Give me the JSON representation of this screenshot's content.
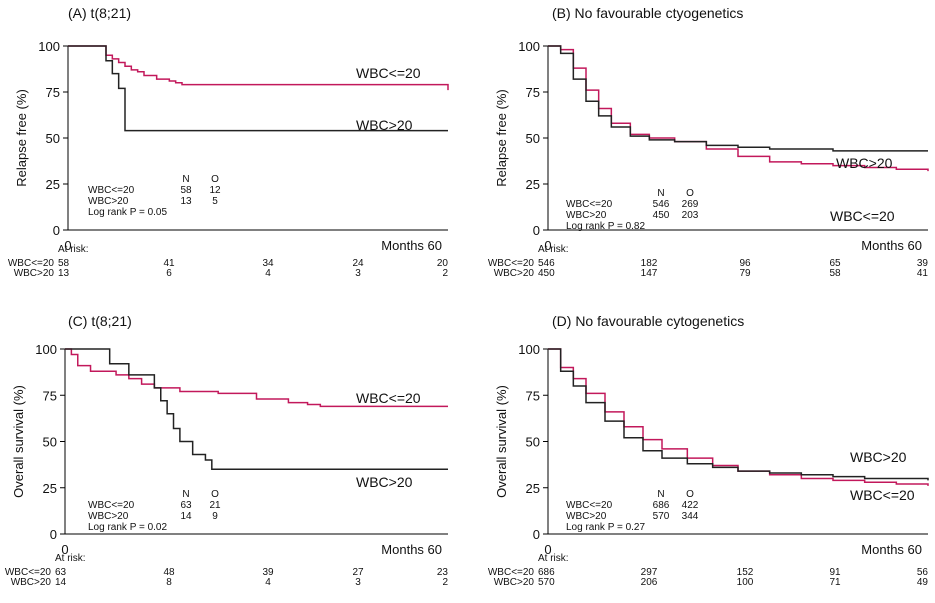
{
  "colors": {
    "wbc_le20": "#c2185b",
    "wbc_gt20": "#222222"
  },
  "chart_data": [
    {
      "id": "A",
      "type": "line",
      "title": "(A) t(8;21)",
      "ylabel": "Relapse free (%)",
      "xlabel": "Months",
      "x_end_label": "60",
      "xlim": [
        0,
        60
      ],
      "ylim": [
        0,
        100
      ],
      "y_ticks": [
        0,
        25,
        50,
        75,
        100
      ],
      "x_ticks": [
        0
      ],
      "series": [
        {
          "name": "WBC<=20",
          "color_key": "wbc_le20",
          "x": [
            0,
            5,
            6,
            7,
            8,
            9,
            10,
            11,
            12,
            14,
            16,
            17,
            18,
            60,
            60
          ],
          "y": [
            100,
            100,
            95,
            93,
            91,
            89,
            87,
            86,
            84,
            82,
            81,
            80,
            79,
            79,
            76
          ]
        },
        {
          "name": "WBC>20",
          "color_key": "wbc_gt20",
          "x": [
            0,
            5,
            6,
            7,
            8,
            9,
            60
          ],
          "y": [
            100,
            100,
            92,
            85,
            77,
            54,
            54
          ]
        }
      ],
      "stats_header": [
        "",
        "N",
        "O"
      ],
      "stats": [
        {
          "group": "WBC<=20",
          "N": "58",
          "O": "12"
        },
        {
          "group": "WBC>20",
          "N": "13",
          "O": "5"
        }
      ],
      "logrank": "Log rank P = 0.05",
      "at_risk_label": "At risk:",
      "at_risk": [
        {
          "group": "WBC<=20",
          "values": [
            "58",
            "41",
            "34",
            "24",
            "20"
          ]
        },
        {
          "group": "WBC>20",
          "values": [
            "13",
            "6",
            "4",
            "3",
            "2"
          ]
        }
      ]
    },
    {
      "id": "B",
      "type": "line",
      "title": "(B) No favourable ctyogenetics",
      "ylabel": "Relapse free (%)",
      "xlabel": "Months",
      "x_end_label": "60",
      "xlim": [
        0,
        60
      ],
      "ylim": [
        0,
        100
      ],
      "y_ticks": [
        0,
        25,
        50,
        75,
        100
      ],
      "x_ticks": [
        0
      ],
      "series": [
        {
          "name": "WBC<=20",
          "color_key": "wbc_le20",
          "x": [
            0,
            2,
            4,
            6,
            8,
            10,
            13,
            16,
            20,
            25,
            30,
            35,
            40,
            45,
            50,
            55,
            60
          ],
          "y": [
            100,
            98,
            88,
            76,
            66,
            58,
            52,
            50,
            48,
            44,
            40,
            37,
            36,
            35,
            34,
            33,
            32
          ]
        },
        {
          "name": "WBC>20",
          "color_key": "wbc_gt20",
          "x": [
            0,
            2,
            4,
            6,
            8,
            10,
            13,
            16,
            20,
            25,
            30,
            35,
            40,
            45,
            50,
            55,
            60
          ],
          "y": [
            100,
            96,
            82,
            70,
            62,
            56,
            51,
            49,
            48,
            46,
            45,
            44,
            44,
            43,
            43,
            43,
            43
          ]
        }
      ],
      "stats_header": [
        "",
        "N",
        "O"
      ],
      "stats": [
        {
          "group": "WBC<=20",
          "N": "546",
          "O": "269"
        },
        {
          "group": "WBC>20",
          "N": "450",
          "O": "203"
        }
      ],
      "logrank": "Log rank P = 0.82",
      "at_risk_label": "At risk:",
      "at_risk": [
        {
          "group": "WBC<=20",
          "values": [
            "546",
            "182",
            "96",
            "65",
            "39"
          ]
        },
        {
          "group": "WBC>20",
          "values": [
            "450",
            "147",
            "79",
            "58",
            "41"
          ]
        }
      ]
    },
    {
      "id": "C",
      "type": "line",
      "title": "(C) t(8;21)",
      "ylabel": "Overall survival (%)",
      "xlabel": "Months",
      "x_end_label": "60",
      "xlim": [
        0,
        60
      ],
      "ylim": [
        0,
        100
      ],
      "y_ticks": [
        0,
        25,
        50,
        75,
        100
      ],
      "x_ticks": [
        0
      ],
      "series": [
        {
          "name": "WBC<=20",
          "color_key": "wbc_le20",
          "x": [
            0,
            1,
            2,
            4,
            8,
            10,
            12,
            14,
            18,
            24,
            30,
            35,
            38,
            40,
            60
          ],
          "y": [
            100,
            97,
            91,
            88,
            86,
            84,
            81,
            79,
            77,
            76,
            73,
            71,
            70,
            69,
            69
          ]
        },
        {
          "name": "WBC>20",
          "color_key": "wbc_gt20",
          "x": [
            0,
            7,
            7,
            10,
            14,
            15,
            16,
            17,
            18,
            20,
            22,
            23,
            60
          ],
          "y": [
            100,
            100,
            92,
            86,
            79,
            72,
            65,
            57,
            50,
            43,
            40,
            35,
            35
          ]
        }
      ],
      "stats_header": [
        "",
        "N",
        "O"
      ],
      "stats": [
        {
          "group": "WBC<=20",
          "N": "63",
          "O": "21"
        },
        {
          "group": "WBC>20",
          "N": "14",
          "O": "9"
        }
      ],
      "logrank": "Log rank P = 0.02",
      "at_risk_label": "At risk:",
      "at_risk": [
        {
          "group": "WBC<=20",
          "values": [
            "63",
            "48",
            "39",
            "27",
            "23"
          ]
        },
        {
          "group": "WBC>20",
          "values": [
            "14",
            "8",
            "4",
            "3",
            "2"
          ]
        }
      ]
    },
    {
      "id": "D",
      "type": "line",
      "title": "(D) No favourable cytogenetics",
      "ylabel": "Overall survival (%)",
      "xlabel": "Months",
      "x_end_label": "60",
      "xlim": [
        0,
        60
      ],
      "ylim": [
        0,
        100
      ],
      "y_ticks": [
        0,
        25,
        50,
        75,
        100
      ],
      "x_ticks": [
        0
      ],
      "series": [
        {
          "name": "WBC<=20",
          "color_key": "wbc_le20",
          "x": [
            0,
            2,
            4,
            6,
            9,
            12,
            15,
            18,
            22,
            26,
            30,
            35,
            40,
            45,
            50,
            55,
            60
          ],
          "y": [
            100,
            90,
            84,
            76,
            66,
            58,
            51,
            46,
            41,
            37,
            34,
            32,
            30,
            29,
            28,
            27,
            26
          ]
        },
        {
          "name": "WBC>20",
          "color_key": "wbc_gt20",
          "x": [
            0,
            2,
            4,
            6,
            9,
            12,
            15,
            18,
            22,
            26,
            30,
            35,
            40,
            45,
            50,
            55,
            60
          ],
          "y": [
            100,
            88,
            80,
            71,
            61,
            52,
            45,
            41,
            38,
            36,
            34,
            33,
            32,
            31,
            30,
            30,
            29
          ]
        }
      ],
      "stats_header": [
        "",
        "N",
        "O"
      ],
      "stats": [
        {
          "group": "WBC<=20",
          "N": "686",
          "O": "422"
        },
        {
          "group": "WBC>20",
          "N": "570",
          "O": "344"
        }
      ],
      "logrank": "Log rank P = 0.27",
      "at_risk_label": "At risk:",
      "at_risk": [
        {
          "group": "WBC<=20",
          "values": [
            "686",
            "297",
            "152",
            "91",
            "56"
          ]
        },
        {
          "group": "WBC>20",
          "values": [
            "570",
            "206",
            "100",
            "71",
            "49"
          ]
        }
      ]
    }
  ]
}
